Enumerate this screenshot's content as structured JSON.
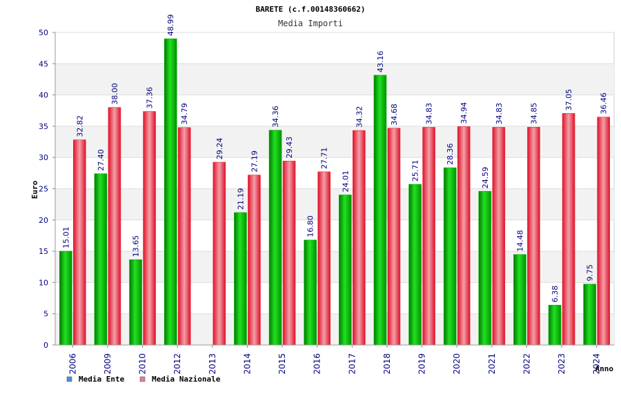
{
  "colors": {
    "ente": "#00b400",
    "nazionale": "#e8283c",
    "axis_text": "#000080",
    "band": "#f2f2f2",
    "grid": "#dddddd"
  },
  "chart_data": {
    "type": "bar",
    "title": "BARETE (c.f.00148360662)",
    "subtitle": "Media Importi",
    "ylabel": "Euro",
    "xlabel": "Anno",
    "ylim": [
      0,
      50
    ],
    "yticks": [
      "0",
      "5",
      "10",
      "15",
      "20",
      "25",
      "30",
      "35",
      "40",
      "45",
      "50"
    ],
    "categories": [
      "2006",
      "2009",
      "2010",
      "2012",
      "2013",
      "2014",
      "2015",
      "2016",
      "2017",
      "2018",
      "2019",
      "2020",
      "2021",
      "2022",
      "2023",
      "2024"
    ],
    "series": [
      {
        "name": "Media Ente",
        "values": [
          15.01,
          27.4,
          13.65,
          48.99,
          null,
          21.19,
          34.36,
          16.8,
          24.01,
          43.16,
          25.71,
          28.36,
          24.59,
          14.48,
          6.38,
          9.75
        ],
        "labels": [
          "15.01",
          "27.40",
          "13.65",
          "48.99",
          "",
          "21.19",
          "34.36",
          "16.80",
          "24.01",
          "43.16",
          "25.71",
          "28.36",
          "24.59",
          "14.48",
          "6.38",
          "9.75"
        ]
      },
      {
        "name": "Media Nazionale",
        "values": [
          32.82,
          38.0,
          37.36,
          34.79,
          29.24,
          27.19,
          29.43,
          27.71,
          34.32,
          34.68,
          34.83,
          34.94,
          34.83,
          34.85,
          37.05,
          36.46
        ],
        "labels": [
          "32.82",
          "38.00",
          "37.36",
          "34.79",
          "29.24",
          "27.19",
          "29.43",
          "27.71",
          "34.32",
          "34.68",
          "34.83",
          "34.94",
          "34.83",
          "34.85",
          "37.05",
          "36.46"
        ]
      }
    ],
    "legend_position": "bottom-left",
    "grid": true
  }
}
